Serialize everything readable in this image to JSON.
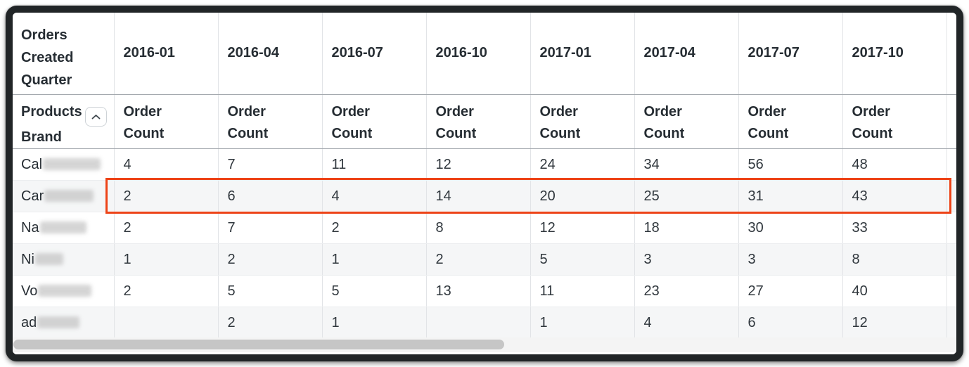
{
  "colors": {
    "highlight_border": "#ed4317",
    "header_text": "#262d33",
    "stripe_row_bg": "#f5f6f7"
  },
  "icons": {
    "sort_icon": "chevron-up-icon"
  },
  "table": {
    "corner_header": "Orders Created Quarter",
    "row_dimension_header": "Products Brand",
    "measure_header": "Order Count",
    "quarter_columns": [
      "2016-01",
      "2016-04",
      "2016-07",
      "2016-10",
      "2017-01",
      "2017-04",
      "2017-07",
      "2017-10"
    ],
    "rows": [
      {
        "brand_prefix": "Cal",
        "brand_redacted": true,
        "redacted_width": 82,
        "highlighted": false,
        "values": [
          "4",
          "7",
          "11",
          "12",
          "24",
          "34",
          "56",
          "48"
        ]
      },
      {
        "brand_prefix": "Car",
        "brand_redacted": true,
        "redacted_width": 70,
        "highlighted": true,
        "values": [
          "2",
          "6",
          "4",
          "14",
          "20",
          "25",
          "31",
          "43"
        ]
      },
      {
        "brand_prefix": "Na",
        "brand_redacted": true,
        "redacted_width": 66,
        "highlighted": false,
        "values": [
          "2",
          "7",
          "2",
          "8",
          "12",
          "18",
          "30",
          "33"
        ]
      },
      {
        "brand_prefix": "Ni",
        "brand_redacted": true,
        "redacted_width": 40,
        "highlighted": false,
        "values": [
          "1",
          "2",
          "1",
          "2",
          "5",
          "3",
          "3",
          "8"
        ]
      },
      {
        "brand_prefix": "Vo",
        "brand_redacted": true,
        "redacted_width": 76,
        "highlighted": false,
        "values": [
          "2",
          "5",
          "5",
          "13",
          "11",
          "23",
          "27",
          "40"
        ]
      },
      {
        "brand_prefix": "ad",
        "brand_redacted": true,
        "redacted_width": 60,
        "highlighted": false,
        "values": [
          "",
          "2",
          "1",
          "",
          "1",
          "4",
          "6",
          "12"
        ]
      }
    ]
  }
}
